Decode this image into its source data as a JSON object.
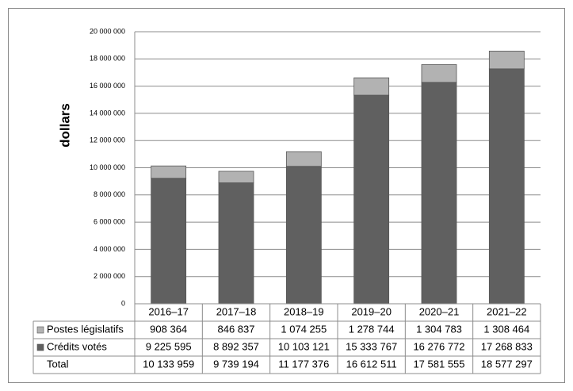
{
  "chart_data": {
    "type": "bar",
    "stacked": true,
    "ylabel": "dollars",
    "categories": [
      "2016–17",
      "2017–18",
      "2018–19",
      "2019–20",
      "2020–21",
      "2021–22"
    ],
    "series": [
      {
        "name": "Postes législatifs",
        "color": "#b2b2b2",
        "values": [
          908364,
          846837,
          1074255,
          1278744,
          1304783,
          1308464
        ],
        "value_labels": [
          "908 364",
          "846 837",
          "1 074 255",
          "1 278 744",
          "1 304 783",
          "1 308 464"
        ]
      },
      {
        "name": "Crédits votés",
        "color": "#606060",
        "values": [
          9225595,
          8892357,
          10103121,
          15333767,
          16276772,
          17268833
        ],
        "value_labels": [
          "9 225 595",
          "8 892 357",
          "10 103 121",
          "15 333 767",
          "16 276 772",
          "17 268 833"
        ]
      }
    ],
    "total": {
      "name": "Total",
      "values": [
        10133959,
        9739194,
        11177376,
        16612511,
        17581555,
        18577297
      ],
      "value_labels": [
        "10 133 959",
        "9 739 194",
        "11 177 376",
        "16 612 511",
        "17 581 555",
        "18 577 297"
      ]
    },
    "ylim": [
      0,
      20000000
    ],
    "yticks": [
      0,
      {
        "value": 2000000,
        "label": "2 000 000"
      },
      {
        "value": 4000000,
        "label": "4 000 000"
      },
      {
        "value": 6000000,
        "label": "6 000 000"
      },
      {
        "value": 8000000,
        "label": "8 000 000"
      },
      {
        "value": 10000000,
        "label": "10 000 000"
      },
      {
        "value": 12000000,
        "label": "12 000 000"
      },
      {
        "value": 14000000,
        "label": "14 000 000"
      },
      {
        "value": 16000000,
        "label": "16 000 000"
      },
      {
        "value": 18000000,
        "label": "18 000 000"
      },
      {
        "value": 20000000,
        "label": "20 000 000"
      }
    ],
    "grid": true
  }
}
